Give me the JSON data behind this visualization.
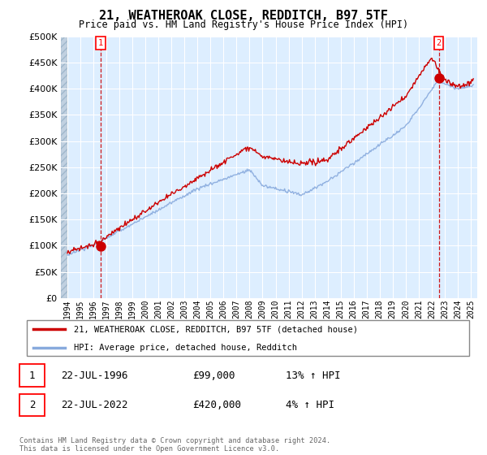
{
  "title": "21, WEATHEROAK CLOSE, REDDITCH, B97 5TF",
  "subtitle": "Price paid vs. HM Land Registry's House Price Index (HPI)",
  "legend_line1": "21, WEATHEROAK CLOSE, REDDITCH, B97 5TF (detached house)",
  "legend_line2": "HPI: Average price, detached house, Redditch",
  "annotation1_date": "22-JUL-1996",
  "annotation1_price": "£99,000",
  "annotation1_hpi": "13% ↑ HPI",
  "annotation1_year": 1996.55,
  "annotation1_value": 99000,
  "annotation2_date": "22-JUL-2022",
  "annotation2_price": "£420,000",
  "annotation2_hpi": "4% ↑ HPI",
  "annotation2_year": 2022.55,
  "annotation2_value": 420000,
  "footer": "Contains HM Land Registry data © Crown copyright and database right 2024.\nThis data is licensed under the Open Government Licence v3.0.",
  "price_color": "#cc0000",
  "hpi_color": "#88aadd",
  "chart_bg": "#ddeeff",
  "hatch_bg": "#c8d8e8",
  "ylim": [
    0,
    500000
  ],
  "yticks": [
    0,
    50000,
    100000,
    150000,
    200000,
    250000,
    300000,
    350000,
    400000,
    450000,
    500000
  ],
  "xlim_start": 1993.5,
  "xlim_end": 2025.5,
  "xticks": [
    1994,
    1995,
    1996,
    1997,
    1998,
    1999,
    2000,
    2001,
    2002,
    2003,
    2004,
    2005,
    2006,
    2007,
    2008,
    2009,
    2010,
    2011,
    2012,
    2013,
    2014,
    2015,
    2016,
    2017,
    2018,
    2019,
    2020,
    2021,
    2022,
    2023,
    2024,
    2025
  ]
}
